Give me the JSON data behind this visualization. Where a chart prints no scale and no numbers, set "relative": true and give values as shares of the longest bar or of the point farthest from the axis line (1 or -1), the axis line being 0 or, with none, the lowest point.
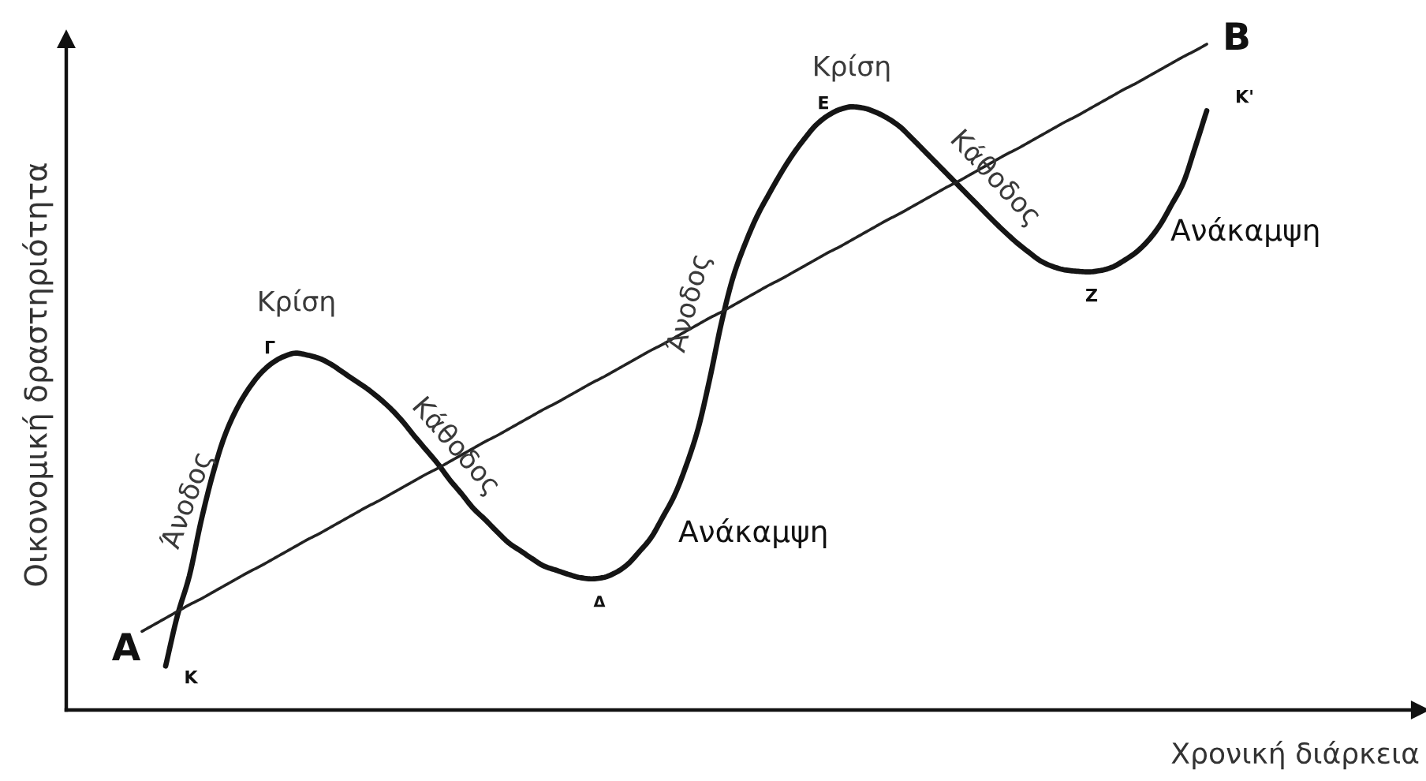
{
  "chart_data": {
    "type": "line",
    "relative": true,
    "xlabel": "Χρονική διάρκεια",
    "ylabel": "Οικονομική δραστηριότητα",
    "categories": [
      null,
      null,
      null,
      null,
      null,
      null,
      null,
      null,
      null,
      null,
      null,
      null,
      null,
      null,
      null,
      null,
      null,
      null,
      null,
      null,
      null,
      null,
      null,
      null,
      null,
      null,
      null,
      null,
      null,
      null,
      null,
      null,
      null,
      null,
      null,
      null,
      null,
      null,
      null,
      null,
      null,
      null,
      null,
      null,
      null,
      null,
      null,
      null,
      null,
      null,
      null,
      null,
      null,
      null,
      null,
      null,
      null,
      null,
      null,
      null,
      null,
      null,
      null,
      null,
      null,
      null,
      null,
      null,
      null,
      null,
      null,
      null,
      null,
      null,
      null,
      null,
      null,
      null,
      null,
      null,
      null,
      null,
      null,
      null,
      null,
      null,
      null,
      null,
      null,
      null,
      null
    ],
    "series": [
      {
        "color": "#151515",
        "values": [
          null,
          null,
          0.066,
          0.142,
          0.201,
          0.284,
          0.355,
          0.412,
          0.452,
          0.482,
          0.505,
          0.521,
          0.531,
          0.536,
          0.533,
          0.528,
          0.519,
          0.507,
          0.495,
          0.483,
          0.469,
          0.453,
          0.434,
          0.412,
          0.391,
          0.37,
          0.346,
          0.325,
          0.303,
          0.286,
          0.268,
          0.251,
          0.239,
          0.227,
          0.216,
          0.21,
          0.204,
          0.199,
          0.197,
          0.199,
          0.206,
          0.218,
          0.237,
          0.258,
          0.289,
          0.322,
          0.367,
          0.422,
          0.498,
          0.583,
          0.652,
          0.701,
          0.742,
          0.775,
          0.806,
          0.834,
          0.858,
          0.879,
          0.893,
          0.902,
          0.906,
          0.904,
          0.898,
          0.889,
          0.877,
          0.86,
          0.842,
          0.824,
          0.806,
          0.788,
          0.77,
          0.752,
          0.734,
          0.717,
          0.701,
          0.687,
          0.674,
          0.666,
          0.661,
          0.659,
          0.658,
          0.66,
          0.665,
          0.675,
          0.687,
          0.704,
          0.727,
          0.758,
          0.791,
          0.844,
          0.9
        ]
      },
      {
        "color": "#222222",
        "values": [
          0.118,
          0.128,
          0.138,
          0.148,
          0.158,
          0.167,
          0.177,
          0.187,
          0.197,
          0.207,
          0.216,
          0.226,
          0.236,
          0.246,
          0.256,
          0.265,
          0.275,
          0.285,
          0.295,
          0.305,
          0.314,
          0.324,
          0.334,
          0.344,
          0.354,
          0.363,
          0.373,
          0.383,
          0.393,
          0.403,
          0.412,
          0.422,
          0.432,
          0.442,
          0.452,
          0.461,
          0.471,
          0.481,
          0.491,
          0.5,
          0.51,
          0.52,
          0.53,
          0.54,
          0.549,
          0.559,
          0.569,
          0.579,
          0.589,
          0.598,
          0.608,
          0.618,
          0.628,
          0.638,
          0.647,
          0.657,
          0.667,
          0.677,
          0.687,
          0.696,
          0.706,
          0.716,
          0.726,
          0.736,
          0.745,
          0.755,
          0.765,
          0.775,
          0.785,
          0.794,
          0.804,
          0.814,
          0.824,
          0.834,
          0.843,
          0.853,
          0.863,
          0.873,
          0.883,
          0.892,
          0.902,
          0.912,
          0.922,
          0.932,
          0.941,
          0.951,
          0.961,
          0.971,
          0.981,
          0.99,
          1.0
        ]
      }
    ],
    "annotations": [
      "Κρίση",
      "Γ",
      "Άνοδος",
      "Κάθοδος",
      "Ανάκαμψη",
      "Δ",
      "Α",
      "Κ",
      "Άνοδος",
      "Κρίση",
      "Ε",
      "Κάθοδος",
      "Ανάκαμψη",
      "Ζ",
      "Κ'",
      "Β"
    ]
  }
}
